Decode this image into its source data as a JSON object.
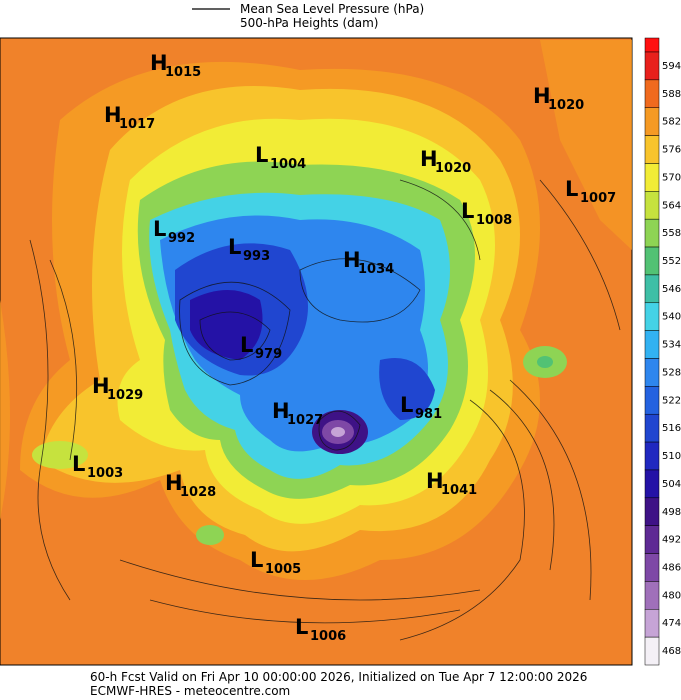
{
  "legend": {
    "line_label": "Mean Sea Level Pressure (hPa)",
    "fill_label": "500-hPa Heights (dam)"
  },
  "colorbar": {
    "ticks": [
      594,
      588,
      582,
      576,
      570,
      564,
      558,
      552,
      546,
      540,
      534,
      528,
      522,
      516,
      510,
      504,
      498,
      492,
      486,
      480,
      474,
      468
    ],
    "colors": [
      "#e8201c",
      "#f06a1e",
      "#f59a24",
      "#f8c42c",
      "#f2ec36",
      "#c6e23e",
      "#8ed454",
      "#52c274",
      "#3ebfa6",
      "#44d2e6",
      "#32b2f2",
      "#2e86ee",
      "#2462e0",
      "#2046d0",
      "#2028c0",
      "#2412a6",
      "#3e1286",
      "#5e2a94",
      "#7e48a6",
      "#a070ba",
      "#c6a4d6",
      "#f4f0f6"
    ]
  },
  "centers": [
    {
      "type": "H",
      "value": 1015
    },
    {
      "type": "H",
      "value": 1017
    },
    {
      "type": "L",
      "value": 1004
    },
    {
      "type": "H",
      "value": 1020
    },
    {
      "type": "H",
      "value": 1020
    },
    {
      "type": "L",
      "value": 1007
    },
    {
      "type": "L",
      "value": 1008
    },
    {
      "type": "L",
      "value": 992
    },
    {
      "type": "L",
      "value": 993
    },
    {
      "type": "H",
      "value": 1034
    },
    {
      "type": "L",
      "value": 979
    },
    {
      "type": "H",
      "value": 1029
    },
    {
      "type": "H",
      "value": 1027
    },
    {
      "type": "L",
      "value": 981
    },
    {
      "type": "L",
      "value": 1003
    },
    {
      "type": "H",
      "value": 1028
    },
    {
      "type": "H",
      "value": 1041
    },
    {
      "type": "L",
      "value": 1005
    },
    {
      "type": "L",
      "value": 1006
    }
  ],
  "footer": {
    "line1": "60-h Fcst Valid on Fri Apr 10 00:00:00 2026, Initialized on Tue Apr  7 12:00:00 2026",
    "line2": "ECMWF-HRES - meteocentre.com"
  }
}
